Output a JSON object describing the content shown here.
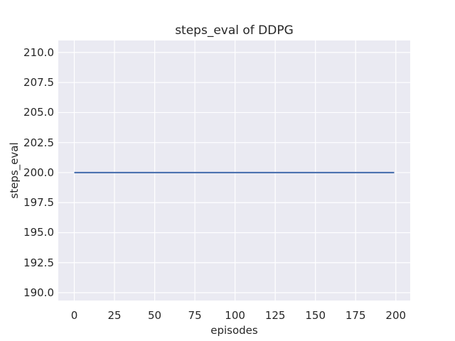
{
  "style": {
    "figure_bg": "#ffffff",
    "axes_bg": "#eaeaf2",
    "grid_color": "#ffffff",
    "text_color": "#262626",
    "line_color": "#4c72b0"
  },
  "chart_data": {
    "type": "line",
    "title": "steps_eval of DDPG",
    "xlabel": "episodes",
    "ylabel": "steps_eval",
    "xlim": [
      -9.95,
      208.95
    ],
    "ylim": [
      189.35,
      211.0
    ],
    "xticks": [
      0,
      25,
      50,
      75,
      100,
      125,
      150,
      175,
      200
    ],
    "xtick_labels": [
      "0",
      "25",
      "50",
      "75",
      "100",
      "125",
      "150",
      "175",
      "200"
    ],
    "yticks": [
      190,
      192.5,
      195,
      197.5,
      200,
      202.5,
      205,
      207.5,
      210
    ],
    "ytick_labels": [
      "190.0",
      "192.5",
      "195.0",
      "197.5",
      "200.0",
      "202.5",
      "205.0",
      "207.5",
      "210.0"
    ],
    "grid": true,
    "legend": false,
    "series": [
      {
        "name": "steps_eval of DDPG",
        "color": "#4c72b0",
        "x": [
          0,
          199
        ],
        "values": [
          200,
          200
        ]
      }
    ]
  }
}
